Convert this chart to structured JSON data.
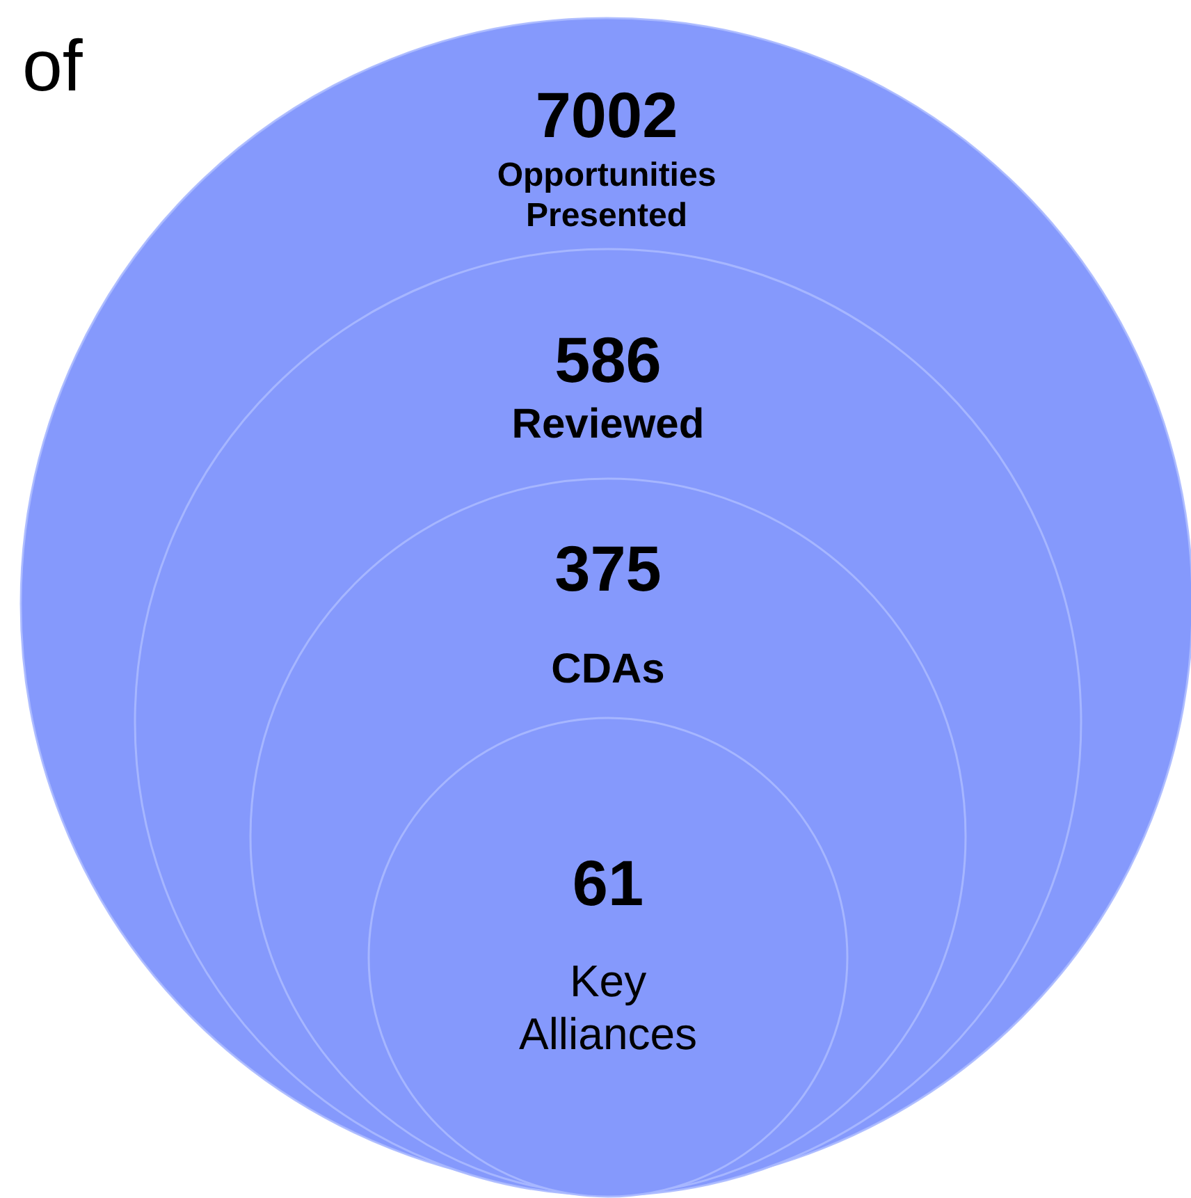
{
  "chart_data": {
    "type": "other",
    "title": "of",
    "categories": [
      "Opportunities Presented",
      "Reviewed",
      "CDAs",
      "Key Alliances"
    ],
    "values": [
      7002,
      586,
      375,
      61
    ],
    "color": "#8599fc",
    "data_labels": true
  }
}
